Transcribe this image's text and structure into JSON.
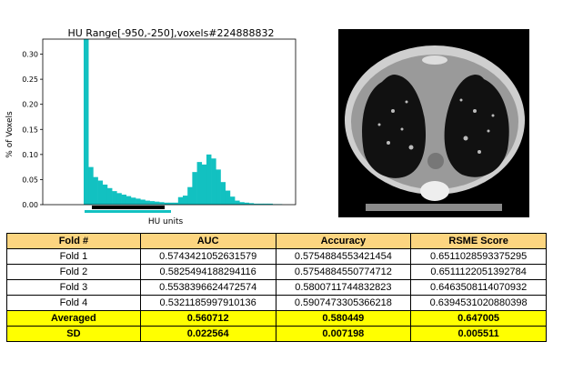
{
  "chart_data": {
    "type": "bar",
    "title": "HU Range[-950,-250],voxels#224888832",
    "xlabel": "HU units",
    "ylabel": "% of Voxels",
    "ylim": [
      0,
      0.33
    ],
    "yticks": [
      "0.00",
      "0.05",
      "0.10",
      "0.15",
      "0.20",
      "0.25",
      "0.30"
    ],
    "ytick_values": [
      0,
      0.05,
      0.1,
      0.15,
      0.2,
      0.25,
      0.3
    ],
    "bar_color": "#12c1c1",
    "values": [
      0.33,
      0.075,
      0.055,
      0.048,
      0.04,
      0.033,
      0.027,
      0.023,
      0.02,
      0.017,
      0.014,
      0.012,
      0.01,
      0.008,
      0.007,
      0.006,
      0.005,
      0.004,
      0.004,
      0.004,
      0.015,
      0.018,
      0.035,
      0.065,
      0.085,
      0.08,
      0.1,
      0.092,
      0.07,
      0.045,
      0.028,
      0.016,
      0.008,
      0.005,
      0.004,
      0.003,
      0.002,
      0.002,
      0.002,
      0.002,
      0.001,
      0.001
    ]
  },
  "table": {
    "headers": [
      "Fold #",
      "AUC",
      "Accuracy",
      "RSME Score"
    ],
    "rows": [
      [
        "Fold 1",
        "0.5743421052631579",
        "0.5754884553421454",
        "0.6511028593375295"
      ],
      [
        "Fold 2",
        "0.5825494188294116",
        "0.5754884550774712",
        "0.6511122051392784"
      ],
      [
        "Fold 3",
        "0.5538396624472574",
        "0.5800711744832823",
        "0.6463508114070932"
      ],
      [
        "Fold 4",
        "0.5321185997910136",
        "0.5907473305366218",
        "0.6394531020880398"
      ]
    ],
    "summary": [
      [
        "Averaged",
        "0.560712",
        "0.580449",
        "0.647005"
      ],
      [
        "SD",
        "0.022564",
        "0.007198",
        "0.005511"
      ]
    ]
  }
}
